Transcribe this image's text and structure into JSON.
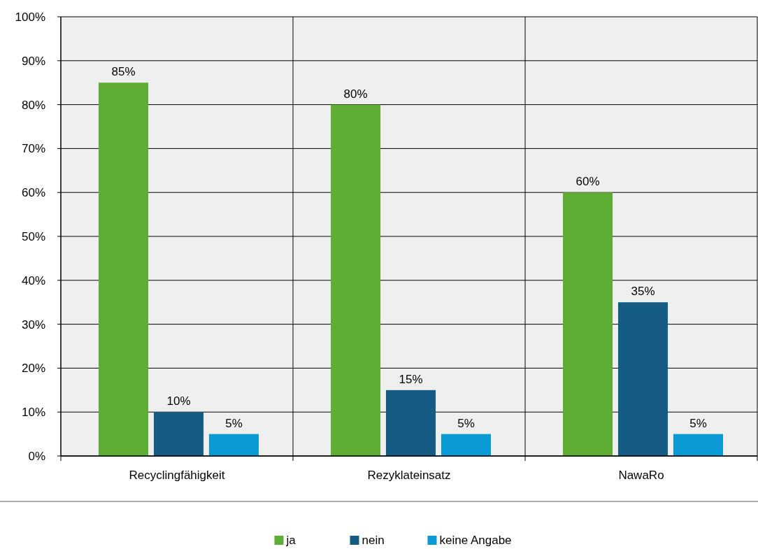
{
  "chart_data": {
    "type": "bar",
    "categories": [
      "Recyclingfähigkeit",
      "Rezyklateinsatz",
      "NawaRo"
    ],
    "series": [
      {
        "name": "ja",
        "color": "#5fad35",
        "values": [
          85,
          80,
          60
        ]
      },
      {
        "name": "nein",
        "color": "#155c85",
        "values": [
          10,
          15,
          35
        ]
      },
      {
        "name": "keine Angabe",
        "color": "#0a9bd6",
        "values": [
          5,
          5,
          5
        ]
      }
    ],
    "ylim": [
      0,
      100
    ],
    "yticks": [
      {
        "value": 0,
        "label": "0%"
      },
      {
        "value": 10,
        "label": "10%"
      },
      {
        "value": 20,
        "label": "20%"
      },
      {
        "value": 30,
        "label": "30%"
      },
      {
        "value": 40,
        "label": "40%"
      },
      {
        "value": 50,
        "label": "50%"
      },
      {
        "value": 60,
        "label": "60%"
      },
      {
        "value": 70,
        "label": "70%"
      },
      {
        "value": 80,
        "label": "80%"
      },
      {
        "value": 90,
        "label": "90%"
      },
      {
        "value": 100,
        "label": "100%"
      }
    ],
    "value_labels": [
      [
        "85%",
        "80%",
        "60%"
      ],
      [
        "10%",
        "15%",
        "35%"
      ],
      [
        "5%",
        "5%",
        "5%"
      ]
    ],
    "grid": true,
    "legend": "bottom"
  }
}
